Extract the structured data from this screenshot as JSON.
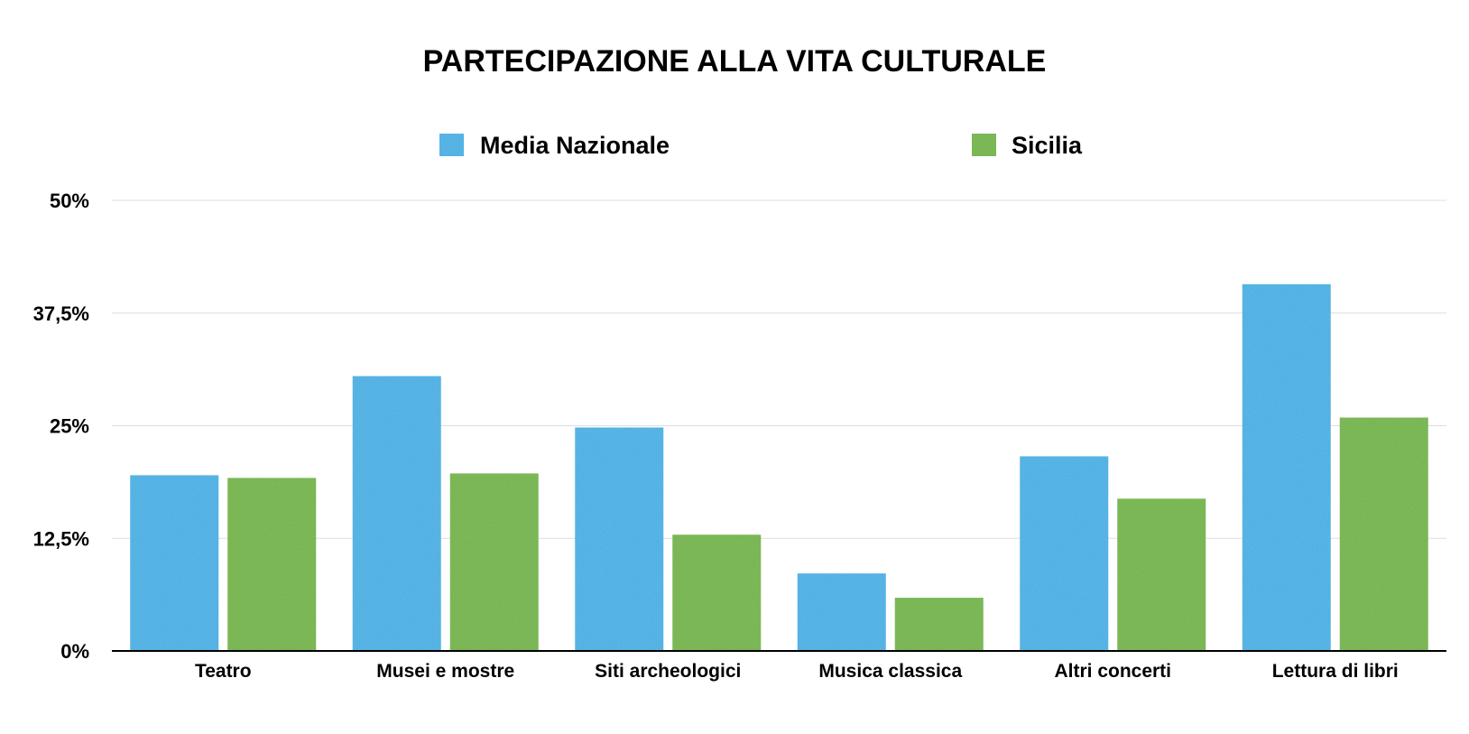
{
  "chart_data": {
    "type": "bar",
    "title": "PARTECIPAZIONE ALLA VITA CULTURALE",
    "categories": [
      "Teatro",
      "Musei e mostre",
      "Siti archeologici",
      "Musica classica",
      "Altri concerti",
      "Lettura di libri"
    ],
    "series": [
      {
        "name": "Media Nazionale",
        "color": "#3daee2",
        "values": [
          19.5,
          30.5,
          24.8,
          8.6,
          21.6,
          40.7
        ]
      },
      {
        "name": "Sicilia",
        "color": "#6eb23d",
        "values": [
          19.2,
          19.7,
          12.9,
          5.9,
          16.9,
          25.9
        ]
      }
    ],
    "ylim": [
      0,
      50
    ],
    "yticks": [
      "0%",
      "12,5%",
      "25%",
      "37,5%",
      "50%"
    ],
    "ytick_values": [
      0,
      12.5,
      25,
      37.5,
      50
    ],
    "xlabel": "",
    "ylabel": "",
    "grid": true,
    "legend_position": "top"
  }
}
